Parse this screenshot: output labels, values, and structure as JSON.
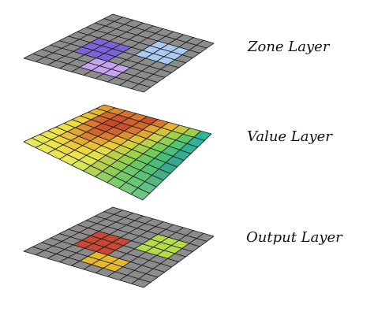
{
  "layers": [
    {
      "id": "zone",
      "label": "Zone Layer",
      "cells": [
        [
          "#8c8c8c",
          "#8c8c8c",
          "#8c8c8c",
          "#8c8c8c",
          "#8c8c8c",
          "#8c8c8c",
          "#8c8c8c",
          "#8c8c8c",
          "#8c8c8c",
          "#8c8c8c"
        ],
        [
          "#8c8c8c",
          "#8c8c8c",
          "#8c8c8c",
          "#8c8c8c",
          "#8c8c8c",
          "#8c8c8c",
          "#8c8c8c",
          "#8c8c8c",
          "#8c8c8c",
          "#8c8c8c"
        ],
        [
          "#8c8c8c",
          "#8c8c8c",
          "#8c8c8c",
          "#8c8c8c",
          "#8c8c8c",
          "#8c8c8c",
          "#a8caf3",
          "#a8caf3",
          "#a8caf3",
          "#8c8c8c"
        ],
        [
          "#8c8c8c",
          "#8c8c8c",
          "#8c8c8c",
          "#8c8c8c",
          "#8c8c8c",
          "#8c8c8c",
          "#a8caf3",
          "#a8caf3",
          "#a8caf3",
          "#8c8c8c"
        ],
        [
          "#8c8c8c",
          "#8c8c8c",
          "#7d63d9",
          "#7d63d9",
          "#7d63d9",
          "#8c8c8c",
          "#a8caf3",
          "#a8caf3",
          "#a8caf3",
          "#8c8c8c"
        ],
        [
          "#8c8c8c",
          "#8c8c8c",
          "#7d63d9",
          "#7d63d9",
          "#7d63d9",
          "#8c8c8c",
          "#8c8c8c",
          "#8c8c8c",
          "#8c8c8c",
          "#8c8c8c"
        ],
        [
          "#8c8c8c",
          "#8c8c8c",
          "#7d63d9",
          "#7d63d9",
          "#7d63d9",
          "#8c8c8c",
          "#8c8c8c",
          "#8c8c8c",
          "#8c8c8c",
          "#8c8c8c"
        ],
        [
          "#8c8c8c",
          "#8c8c8c",
          "#8c8c8c",
          "#8c8c8c",
          "#c6a3f2",
          "#c6a3f2",
          "#c6a3f2",
          "#8c8c8c",
          "#8c8c8c",
          "#8c8c8c"
        ],
        [
          "#8c8c8c",
          "#8c8c8c",
          "#8c8c8c",
          "#8c8c8c",
          "#c6a3f2",
          "#c6a3f2",
          "#c6a3f2",
          "#8c8c8c",
          "#8c8c8c",
          "#8c8c8c"
        ],
        [
          "#8c8c8c",
          "#8c8c8c",
          "#8c8c8c",
          "#8c8c8c",
          "#8c8c8c",
          "#8c8c8c",
          "#8c8c8c",
          "#8c8c8c",
          "#8c8c8c",
          "#8c8c8c"
        ]
      ]
    },
    {
      "id": "value",
      "label": "Value Layer",
      "cells": [
        [
          "#e0a030",
          "#dd8a2e",
          "#d6722c",
          "#d9752d",
          "#c94e2c",
          "#d6782e",
          "#e6b430",
          "#c8c840",
          "#9ad04a",
          "#2fb39a"
        ],
        [
          "#e6b832",
          "#d56a2e",
          "#cc572c",
          "#d0622d",
          "#cf6a2e",
          "#e2a630",
          "#d4c23c",
          "#9fd04a",
          "#5ac86e",
          "#2fb39a"
        ],
        [
          "#e8c236",
          "#d2662d",
          "#c8482c",
          "#c9502c",
          "#d6782e",
          "#e0a832",
          "#cbd24a",
          "#8fd050",
          "#52c474",
          "#31b095"
        ],
        [
          "#ead03a",
          "#d9782e",
          "#cc532c",
          "#d0642d",
          "#dc922f",
          "#dec23a",
          "#b6d24a",
          "#7ccd58",
          "#4ac07a",
          "#33ad92"
        ],
        [
          "#ecdc42",
          "#e08e30",
          "#d2652d",
          "#d8802f",
          "#e4b634",
          "#d2d040",
          "#a4d24c",
          "#72ca5c",
          "#48bd7c",
          "#35aa8e"
        ],
        [
          "#ece244",
          "#e6a632",
          "#dc822f",
          "#e2a432",
          "#e8cc3a",
          "#c6d044",
          "#9cd04e",
          "#6cc862",
          "#4abd7a",
          "#3aa98c"
        ],
        [
          "#eae44a",
          "#eac03a",
          "#e6a834",
          "#e8c03a",
          "#e8da42",
          "#bed046",
          "#96cf50",
          "#6ac766",
          "#52c076",
          "#45ad88"
        ],
        [
          "#e8e650",
          "#ecd640",
          "#ecca3e",
          "#ecd644",
          "#e4e24a",
          "#b8d04a",
          "#90ce54",
          "#6cc86a",
          "#5cc276",
          "#55b684"
        ],
        [
          "#e6e858",
          "#ece44a",
          "#ecde4a",
          "#ebe250",
          "#dce650",
          "#b4d04e",
          "#8ece58",
          "#74ca6a",
          "#68c67a",
          "#62c084"
        ],
        [
          "#e4ea60",
          "#eae656",
          "#eae454",
          "#e8e65a",
          "#d6e65c",
          "#b2d256",
          "#90cf60",
          "#7ecc6e",
          "#74c87c",
          "#6cc486"
        ]
      ]
    },
    {
      "id": "output",
      "label": "Output Layer",
      "cells": [
        [
          "#8c8c8c",
          "#8c8c8c",
          "#8c8c8c",
          "#8c8c8c",
          "#8c8c8c",
          "#8c8c8c",
          "#8c8c8c",
          "#8c8c8c",
          "#8c8c8c",
          "#8c8c8c"
        ],
        [
          "#8c8c8c",
          "#8c8c8c",
          "#8c8c8c",
          "#8c8c8c",
          "#8c8c8c",
          "#8c8c8c",
          "#8c8c8c",
          "#8c8c8c",
          "#8c8c8c",
          "#8c8c8c"
        ],
        [
          "#8c8c8c",
          "#8c8c8c",
          "#8c8c8c",
          "#8c8c8c",
          "#8c8c8c",
          "#8c8c8c",
          "#b4dc48",
          "#b4dc48",
          "#b4dc48",
          "#8c8c8c"
        ],
        [
          "#8c8c8c",
          "#8c8c8c",
          "#8c8c8c",
          "#8c8c8c",
          "#8c8c8c",
          "#8c8c8c",
          "#b4dc48",
          "#b4dc48",
          "#b4dc48",
          "#8c8c8c"
        ],
        [
          "#8c8c8c",
          "#8c8c8c",
          "#c84834",
          "#c84834",
          "#c84834",
          "#8c8c8c",
          "#b4dc48",
          "#b4dc48",
          "#b4dc48",
          "#8c8c8c"
        ],
        [
          "#8c8c8c",
          "#8c8c8c",
          "#c84834",
          "#c84834",
          "#c84834",
          "#8c8c8c",
          "#8c8c8c",
          "#8c8c8c",
          "#8c8c8c",
          "#8c8c8c"
        ],
        [
          "#8c8c8c",
          "#8c8c8c",
          "#c84834",
          "#c84834",
          "#c84834",
          "#8c8c8c",
          "#8c8c8c",
          "#8c8c8c",
          "#8c8c8c",
          "#8c8c8c"
        ],
        [
          "#8c8c8c",
          "#8c8c8c",
          "#8c8c8c",
          "#8c8c8c",
          "#e6b830",
          "#e6b830",
          "#e6b830",
          "#8c8c8c",
          "#8c8c8c",
          "#8c8c8c"
        ],
        [
          "#8c8c8c",
          "#8c8c8c",
          "#8c8c8c",
          "#8c8c8c",
          "#e6b830",
          "#e6b830",
          "#e6b830",
          "#8c8c8c",
          "#8c8c8c",
          "#8c8c8c"
        ],
        [
          "#8c8c8c",
          "#8c8c8c",
          "#8c8c8c",
          "#8c8c8c",
          "#8c8c8c",
          "#8c8c8c",
          "#8c8c8c",
          "#8c8c8c",
          "#8c8c8c",
          "#8c8c8c"
        ]
      ]
    }
  ]
}
